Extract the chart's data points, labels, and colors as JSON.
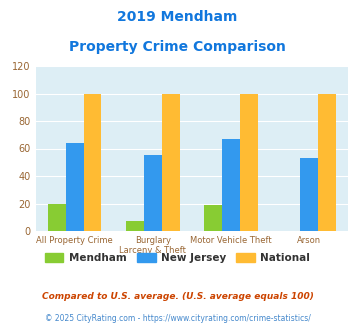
{
  "title_line1": "2019 Mendham",
  "title_line2": "Property Crime Comparison",
  "cat_labels_line1": [
    "All Property Crime",
    "Burglary",
    "Motor Vehicle Theft",
    "Arson"
  ],
  "cat_labels_line2": [
    "",
    "Larceny & Theft",
    "",
    ""
  ],
  "mendham": [
    20,
    7,
    19,
    0
  ],
  "new_jersey": [
    64,
    55,
    67,
    53
  ],
  "national": [
    100,
    100,
    100,
    100
  ],
  "bar_colors": {
    "mendham": "#88cc33",
    "new_jersey": "#3399ee",
    "national": "#ffbb33"
  },
  "ylim": [
    0,
    120
  ],
  "yticks": [
    0,
    20,
    40,
    60,
    80,
    100,
    120
  ],
  "title_color": "#1177dd",
  "axis_bg_color": "#ddeef5",
  "fig_bg_color": "#ffffff",
  "legend_labels": [
    "Mendham",
    "New Jersey",
    "National"
  ],
  "legend_text_color": "#333333",
  "footnote1": "Compared to U.S. average. (U.S. average equals 100)",
  "footnote2": "© 2025 CityRating.com - https://www.cityrating.com/crime-statistics/",
  "footnote1_color": "#cc4400",
  "footnote2_color": "#4488cc",
  "grid_color": "#ffffff",
  "tick_label_color": "#996633",
  "bar_width": 0.23
}
